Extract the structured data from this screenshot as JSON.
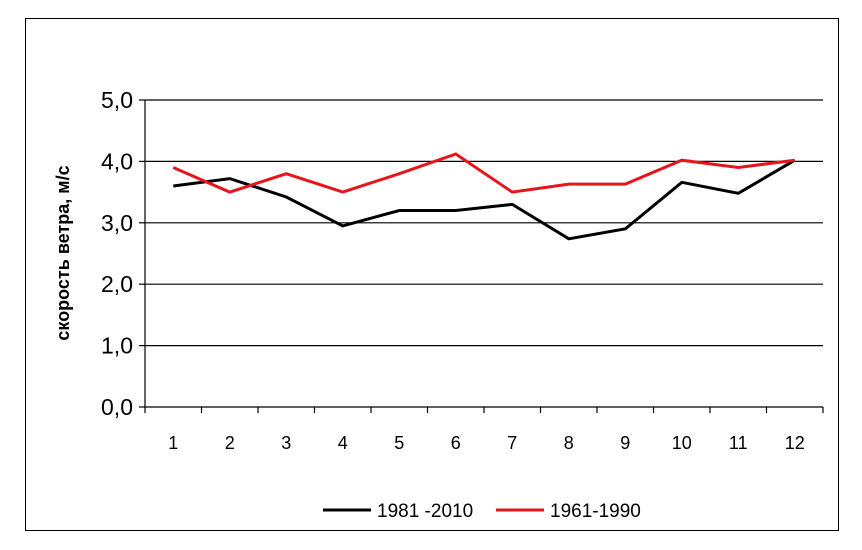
{
  "chart_data": {
    "type": "line",
    "categories": [
      "1",
      "2",
      "3",
      "4",
      "5",
      "6",
      "7",
      "8",
      "9",
      "10",
      "11",
      "12"
    ],
    "series": [
      {
        "name": "1981 -2010",
        "color": "#000000",
        "values": [
          3.6,
          3.72,
          3.42,
          2.95,
          3.2,
          3.2,
          3.3,
          2.74,
          2.9,
          3.66,
          3.48,
          4.02
        ]
      },
      {
        "name": "1961-1990",
        "color": "#e8141b",
        "values": [
          3.9,
          3.5,
          3.8,
          3.5,
          3.8,
          4.12,
          3.5,
          3.63,
          3.63,
          4.02,
          3.9,
          4.02
        ]
      }
    ],
    "yticks": [
      "0,0",
      "1,0",
      "2,0",
      "3,0",
      "4,0",
      "5,0"
    ],
    "ylabel": "скорость ветра, м/с",
    "xlabel": "",
    "ylim": [
      0,
      5
    ],
    "grid": "horizontal",
    "legend": "bottom"
  }
}
